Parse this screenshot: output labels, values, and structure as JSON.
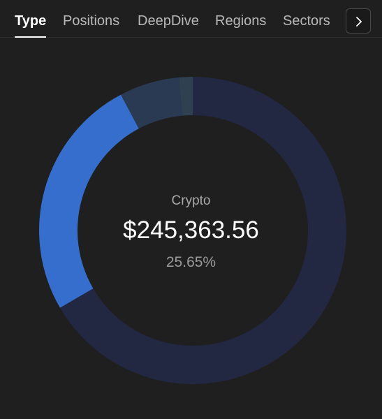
{
  "tabs": [
    {
      "label": "Type",
      "active": true
    },
    {
      "label": "Positions",
      "active": false
    },
    {
      "label": "DeepDive",
      "active": false
    },
    {
      "label": "Regions",
      "active": false
    },
    {
      "label": "Sectors",
      "active": false
    }
  ],
  "next_icon": "chevron-right-icon",
  "center": {
    "title": "Crypto",
    "value": "$245,363.56",
    "percent": "25.65%"
  },
  "chart_data": {
    "type": "pie",
    "donut": true,
    "slices": [
      {
        "value": 66.6,
        "color": "#222742"
      },
      {
        "value": 25.65,
        "color": "#356ecc"
      },
      {
        "value": 6.3,
        "color": "#2a3a52"
      },
      {
        "value": 1.45,
        "color": "#2f4050"
      }
    ],
    "highlighted_index": 1
  }
}
